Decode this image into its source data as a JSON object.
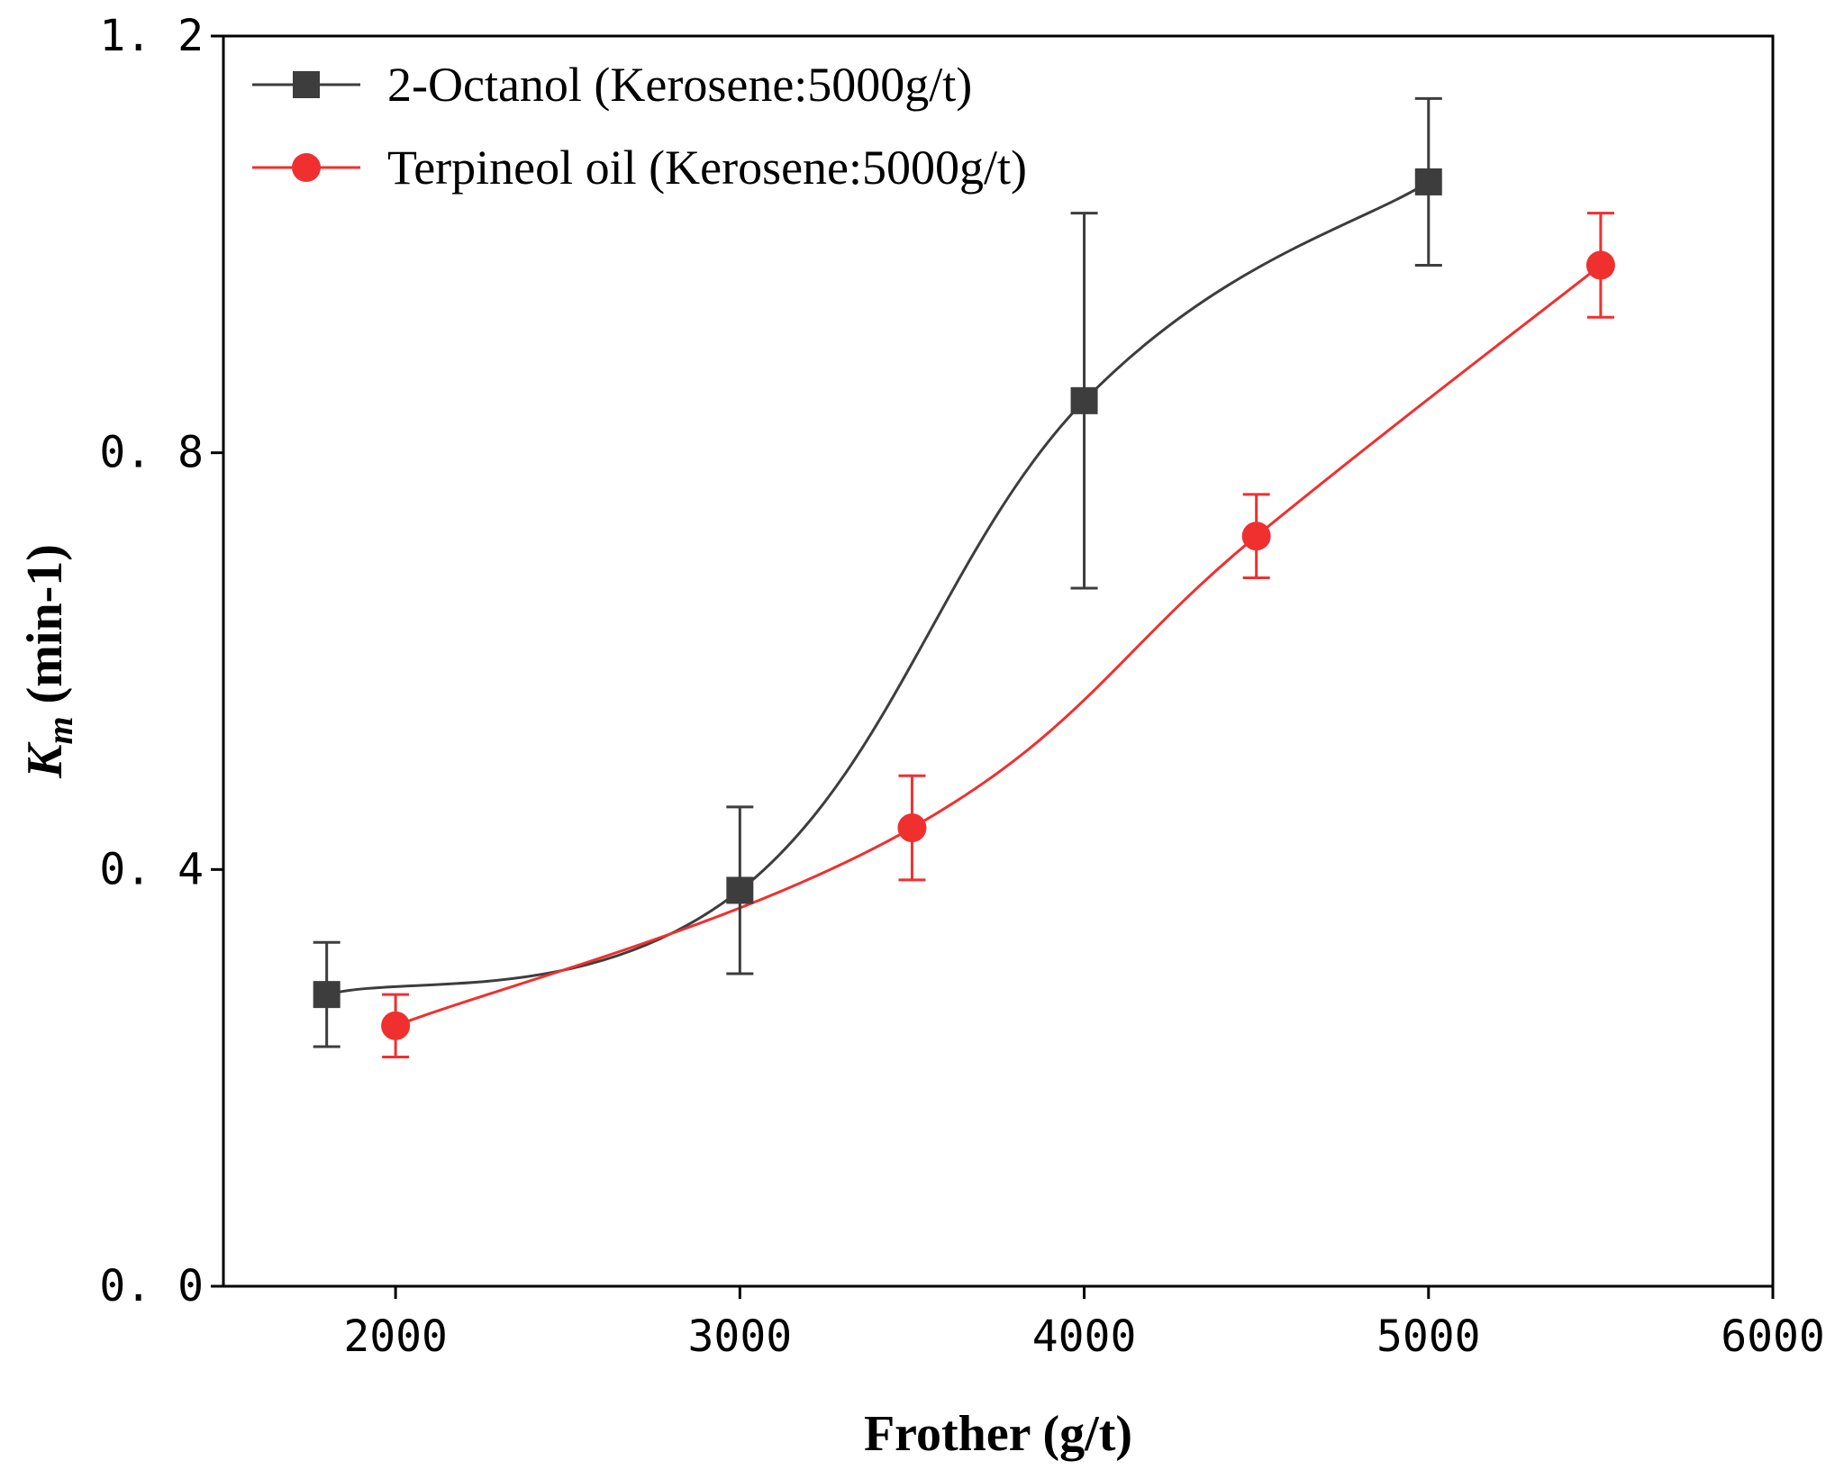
{
  "chart_data": {
    "type": "line",
    "xlabel": "Frother (g/t)",
    "ylabel_main": "K",
    "ylabel_sub": "m",
    "ylabel_rest": " (min-1)",
    "xlim": [
      1500,
      6000
    ],
    "ylim": [
      0.0,
      1.2
    ],
    "xticks": [
      2000,
      3000,
      4000,
      5000,
      6000
    ],
    "xtick_labels": [
      "2000",
      "3000",
      "4000",
      "5000",
      "6000"
    ],
    "yticks": [
      0.0,
      0.4,
      0.8,
      1.2
    ],
    "ytick_labels": [
      "0. 0",
      "0. 4",
      "0. 8",
      "1. 2"
    ],
    "grid": false,
    "legend_position": "top-left",
    "series": [
      {
        "name": "2-Octanol (Kerosene:5000g/t)",
        "color": "#3d3d3d",
        "marker": "square",
        "x": [
          1800,
          3000,
          4000,
          5000
        ],
        "y": [
          0.28,
          0.38,
          0.85,
          1.06
        ],
        "err": [
          0.05,
          0.08,
          0.18,
          0.08
        ]
      },
      {
        "name": "Terpineol oil (Kerosene:5000g/t)",
        "color": "#f0302f",
        "marker": "circle",
        "x": [
          2000,
          3500,
          4500,
          5500
        ],
        "y": [
          0.25,
          0.44,
          0.72,
          0.98
        ],
        "err": [
          0.03,
          0.05,
          0.04,
          0.05
        ]
      }
    ]
  }
}
